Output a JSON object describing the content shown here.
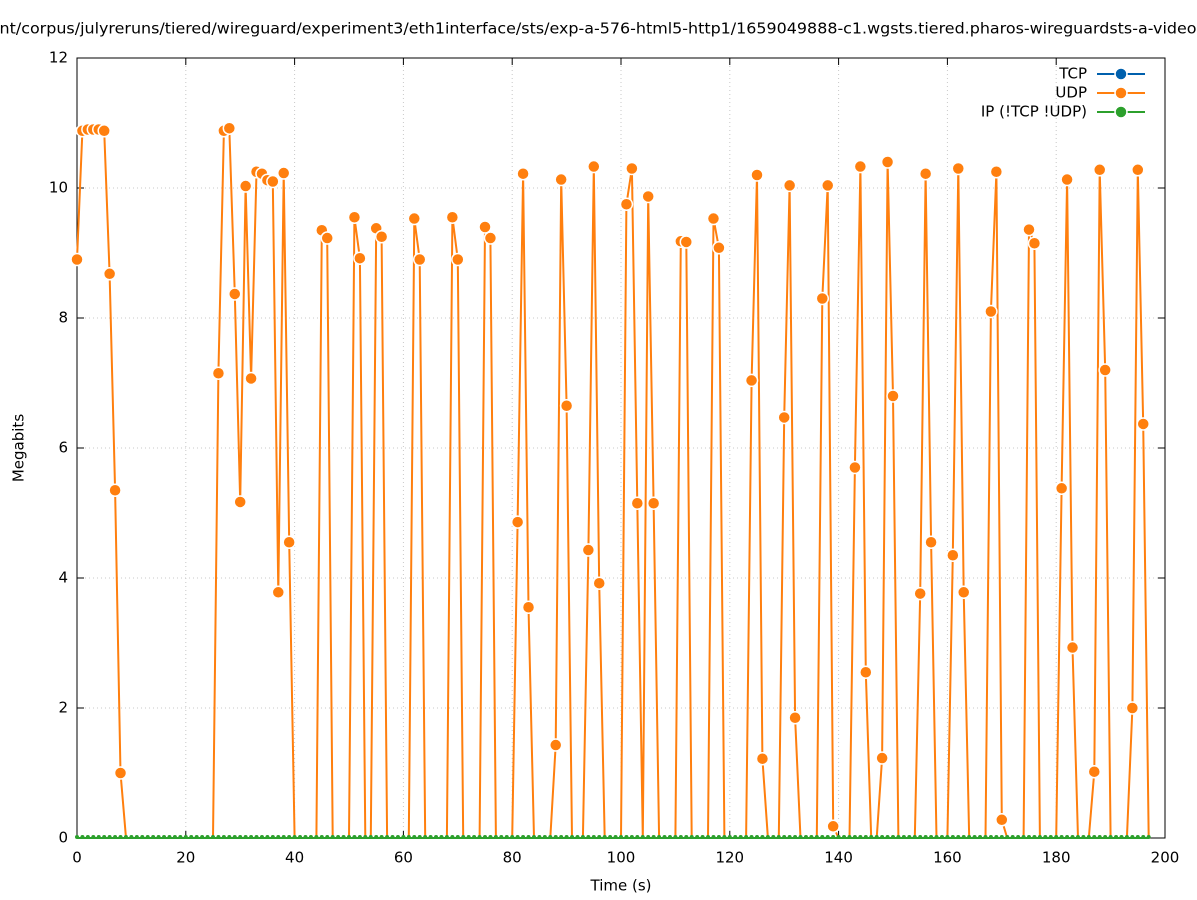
{
  "chart_data": {
    "type": "line",
    "title": "nt/corpus/julyreruns/tiered/wireguard/experiment3/eth1interface/sts/exp-a-576-html5-http1/1659049888-c1.wgsts.tiered.pharos-wireguardsts-a-video",
    "xlabel": "Time (s)",
    "ylabel": "Megabits",
    "xlim": [
      0,
      200
    ],
    "ylim": [
      0,
      12
    ],
    "xticks": [
      0,
      20,
      40,
      60,
      80,
      100,
      120,
      140,
      160,
      180,
      200
    ],
    "yticks": [
      0,
      2,
      4,
      6,
      8,
      10,
      12
    ],
    "grid": true,
    "legend": "top-right",
    "x": [
      0,
      1,
      2,
      3,
      4,
      5,
      6,
      7,
      8,
      9,
      10,
      11,
      12,
      13,
      14,
      15,
      16,
      17,
      18,
      19,
      20,
      21,
      22,
      23,
      24,
      25,
      26,
      27,
      28,
      29,
      30,
      31,
      32,
      33,
      34,
      35,
      36,
      37,
      38,
      39,
      40,
      41,
      42,
      43,
      44,
      45,
      46,
      47,
      48,
      49,
      50,
      51,
      52,
      53,
      54,
      55,
      56,
      57,
      58,
      59,
      60,
      61,
      62,
      63,
      64,
      65,
      66,
      67,
      68,
      69,
      70,
      71,
      72,
      73,
      74,
      75,
      76,
      77,
      78,
      79,
      80,
      81,
      82,
      83,
      84,
      85,
      86,
      87,
      88,
      89,
      90,
      91,
      92,
      93,
      94,
      95,
      96,
      97,
      98,
      99,
      100,
      101,
      102,
      103,
      104,
      105,
      106,
      107,
      108,
      109,
      110,
      111,
      112,
      113,
      114,
      115,
      116,
      117,
      118,
      119,
      120,
      121,
      122,
      123,
      124,
      125,
      126,
      127,
      128,
      129,
      130,
      131,
      132,
      133,
      134,
      135,
      136,
      137,
      138,
      139,
      140,
      141,
      142,
      143,
      144,
      145,
      146,
      147,
      148,
      149,
      150,
      151,
      152,
      153,
      154,
      155,
      156,
      157,
      158,
      159,
      160,
      161,
      162,
      163,
      164,
      165,
      166,
      167,
      168,
      169,
      170,
      171,
      172,
      173,
      174,
      175,
      176,
      177,
      178,
      179,
      180,
      181,
      182,
      183,
      184,
      185,
      186,
      187,
      188,
      189,
      190,
      191,
      192,
      193,
      194,
      195,
      196,
      197
    ],
    "series": [
      {
        "name": "TCP",
        "color": "#0060ad",
        "values": [
          null,
          null,
          null,
          null,
          null,
          null,
          null,
          null,
          null,
          null,
          null,
          null,
          null,
          null,
          null,
          null,
          null,
          null,
          null,
          null,
          null,
          null,
          null,
          null,
          null,
          null,
          null,
          null,
          null,
          null,
          null,
          null,
          null,
          null,
          null,
          null,
          null,
          null,
          null,
          null,
          null,
          null,
          null,
          null,
          null,
          null,
          null,
          null,
          null,
          null,
          null,
          null,
          null,
          null,
          null,
          null,
          null,
          null,
          null,
          null,
          null,
          null,
          null,
          null,
          null,
          null,
          null,
          null,
          null,
          null,
          null,
          null,
          null,
          null,
          null,
          null,
          null,
          null,
          null,
          null,
          null,
          null,
          null,
          null,
          null,
          null,
          null,
          null,
          null,
          null,
          null,
          null,
          null,
          null,
          null,
          null,
          null,
          null,
          null,
          null,
          null,
          null,
          null,
          null,
          null,
          null,
          null,
          null,
          null,
          null,
          null,
          null,
          null,
          null,
          null,
          null,
          null,
          null,
          null,
          null,
          null,
          null,
          null,
          null,
          null,
          null,
          null,
          null,
          null,
          null,
          null,
          null,
          null,
          null,
          null,
          null,
          null,
          null,
          null,
          null,
          null,
          null,
          null,
          null,
          null,
          null,
          null,
          null,
          null,
          null,
          null,
          null,
          null,
          null,
          null,
          null,
          null,
          null,
          null,
          null,
          null,
          null,
          null,
          null,
          null,
          null,
          null,
          null,
          null,
          null,
          null,
          null,
          null,
          null,
          null,
          null,
          null,
          null,
          null,
          null,
          null,
          null,
          null,
          null,
          null,
          null,
          null,
          null,
          null,
          null,
          null,
          null,
          null,
          null,
          null,
          null,
          null,
          null
        ]
      },
      {
        "name": "UDP",
        "color": "#ff7f0e",
        "values": [
          8.9,
          10.88,
          10.9,
          10.9,
          10.9,
          10.88,
          8.68,
          5.35,
          1.0,
          0,
          0,
          0,
          0,
          0,
          0,
          0,
          0,
          0,
          0,
          0,
          0,
          0,
          0,
          0,
          0,
          0,
          7.15,
          10.88,
          10.92,
          8.37,
          5.17,
          10.03,
          7.07,
          10.25,
          10.22,
          10.12,
          10.1,
          3.78,
          10.23,
          4.55,
          0,
          0,
          0,
          0,
          0,
          9.35,
          9.23,
          0,
          0,
          0,
          0,
          9.55,
          8.92,
          0,
          0,
          9.38,
          9.25,
          0,
          0,
          0,
          0,
          0,
          9.53,
          8.9,
          0,
          0,
          0,
          0,
          0,
          9.55,
          8.9,
          0,
          0,
          0,
          0,
          9.4,
          9.23,
          0,
          0,
          0,
          0,
          4.86,
          10.22,
          3.55,
          0,
          0,
          0,
          0,
          1.43,
          10.13,
          6.65,
          0,
          0,
          0,
          4.43,
          10.33,
          3.92,
          0,
          0,
          0,
          0,
          9.75,
          10.3,
          5.15,
          0,
          9.87,
          5.15,
          0,
          0,
          0,
          0,
          9.18,
          9.17,
          0,
          0,
          0,
          0,
          9.53,
          9.08,
          0,
          0,
          0,
          0,
          0,
          7.04,
          10.2,
          1.22,
          0,
          0,
          0,
          6.47,
          10.04,
          1.85,
          0,
          0,
          0,
          0,
          8.3,
          10.04,
          0.18,
          0,
          0,
          0,
          5.7,
          10.33,
          2.55,
          0,
          0,
          1.23,
          10.4,
          6.8,
          0,
          0,
          0,
          0,
          3.76,
          10.22,
          4.55,
          0,
          0,
          0,
          4.35,
          10.3,
          3.78,
          0,
          0,
          0,
          0,
          8.1,
          10.25,
          0.28,
          0,
          0,
          0,
          0,
          9.36,
          9.15,
          0,
          0,
          0,
          0,
          5.38,
          10.13,
          2.93,
          0,
          0,
          0,
          1.02,
          10.28,
          7.2,
          0,
          0,
          0,
          0,
          2.0,
          10.28,
          6.37,
          0
        ]
      },
      {
        "name": "IP (!TCP  !UDP)",
        "color": "#2ca02c",
        "values": [
          0,
          0,
          0,
          0,
          0,
          0,
          0,
          0,
          0,
          0,
          0,
          0,
          0,
          0,
          0,
          0,
          0,
          0,
          0,
          0,
          0,
          0,
          0,
          0,
          0,
          0,
          0,
          0,
          0,
          0,
          0,
          0,
          0,
          0,
          0,
          0,
          0,
          0,
          0,
          0,
          0,
          0,
          0,
          0,
          0,
          0,
          0,
          0,
          0,
          0,
          0,
          0,
          0,
          0,
          0,
          0,
          0,
          0,
          0,
          0,
          0,
          0,
          0,
          0,
          0,
          0,
          0,
          0,
          0,
          0,
          0,
          0,
          0,
          0,
          0,
          0,
          0,
          0,
          0,
          0,
          0,
          0,
          0,
          0,
          0,
          0,
          0,
          0,
          0,
          0,
          0,
          0,
          0,
          0,
          0,
          0,
          0,
          0,
          0,
          0,
          0,
          0,
          0,
          0,
          0,
          0,
          0,
          0,
          0,
          0,
          0,
          0,
          0,
          0,
          0,
          0,
          0,
          0,
          0,
          0,
          0,
          0,
          0,
          0,
          0,
          0,
          0,
          0,
          0,
          0,
          0,
          0,
          0,
          0,
          0,
          0,
          0,
          0,
          0,
          0,
          0,
          0,
          0,
          0,
          0,
          0,
          0,
          0,
          0,
          0,
          0,
          0,
          0,
          0,
          0,
          0,
          0,
          0,
          0,
          0,
          0,
          0,
          0,
          0,
          0,
          0,
          0,
          0,
          0,
          0,
          0,
          0,
          0,
          0,
          0,
          0,
          0,
          0,
          0,
          0,
          0,
          0,
          0,
          0,
          0,
          0,
          0,
          0,
          0,
          0,
          0,
          0,
          0,
          0,
          0,
          0,
          0,
          0
        ]
      }
    ]
  }
}
